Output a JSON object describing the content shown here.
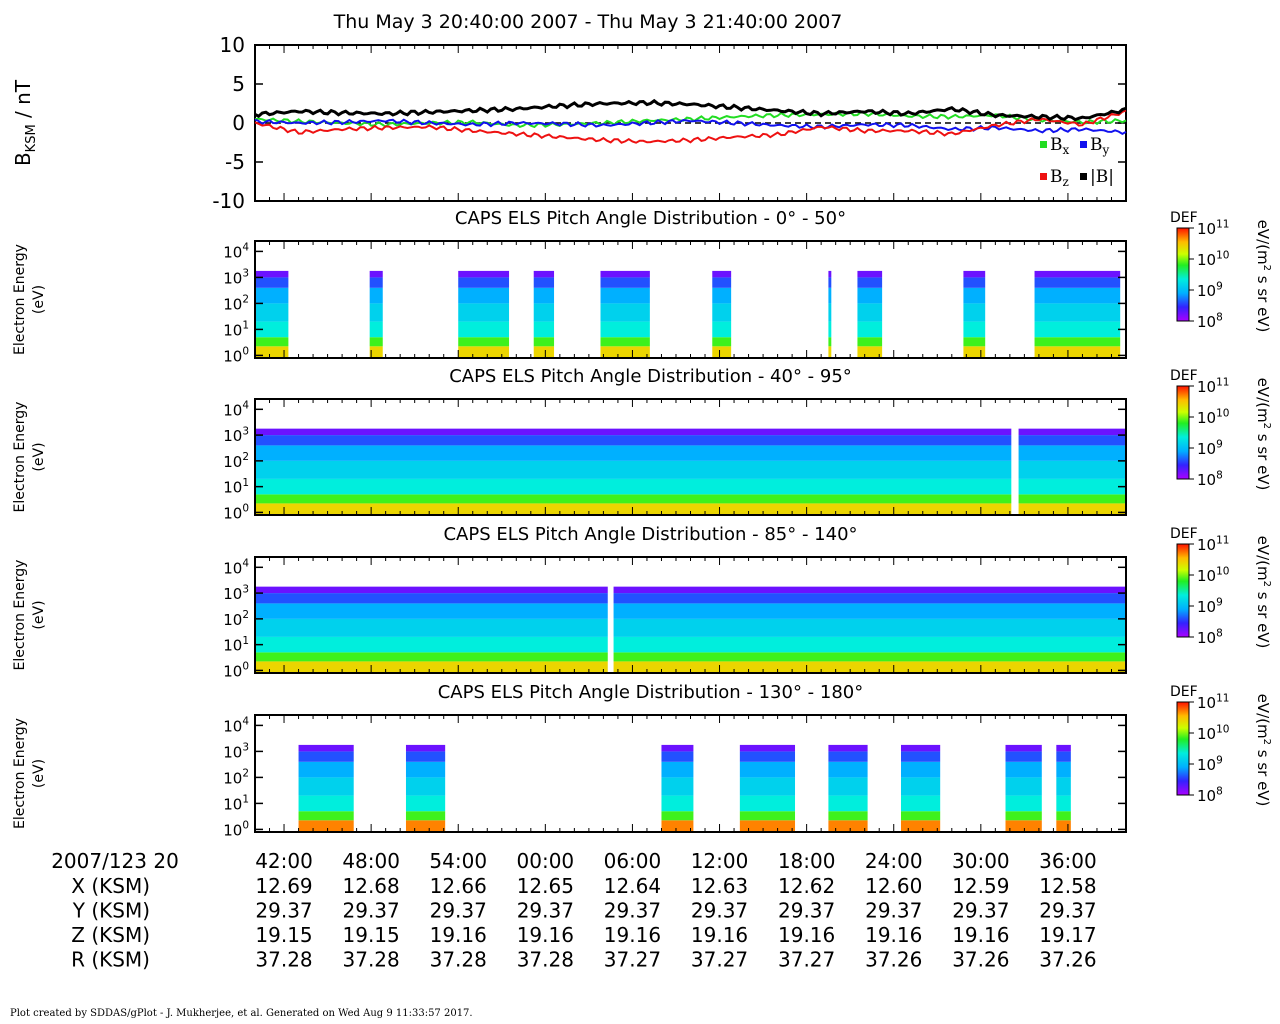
{
  "chart_data": [
    {
      "type": "line",
      "title": "Thu May 3 20:40:00 2007 - Thu May 3 21:40:00 2007",
      "ylabel": "B",
      "ylabel_sub": "KSM",
      "ylabel_unit": " / nT",
      "ylim": [
        -10,
        10
      ],
      "yticks": [
        "10",
        "5",
        "0",
        "-5",
        "-10"
      ],
      "x_minutes": [
        0,
        3,
        6,
        9,
        12,
        15,
        18,
        21,
        24,
        27,
        30,
        33,
        36,
        39,
        42,
        45,
        48,
        51,
        54,
        57,
        60
      ],
      "series": [
        {
          "name": "B",
          "sub": "x",
          "color": "#22dd22",
          "values": [
            0.5,
            0.2,
            0.0,
            -0.2,
            0.0,
            0.1,
            -0.3,
            -0.2,
            0.0,
            0.3,
            0.5,
            0.8,
            1.0,
            1.1,
            1.2,
            0.9,
            0.8,
            1.0,
            0.4,
            0.1,
            0.3
          ]
        },
        {
          "name": "B",
          "sub": "y",
          "color": "#1111ee",
          "values": [
            0.2,
            0.0,
            0.1,
            0.3,
            0.0,
            -0.2,
            0.0,
            -0.1,
            -0.3,
            0.0,
            0.3,
            0.0,
            -0.3,
            -0.5,
            -0.2,
            -0.3,
            -0.8,
            -0.6,
            -1.0,
            -0.8,
            -1.2
          ]
        },
        {
          "name": "B",
          "sub": "z",
          "color": "#ee1111",
          "values": [
            0.0,
            -1.2,
            -0.8,
            -0.6,
            -0.5,
            -1.0,
            -1.4,
            -1.8,
            -2.2,
            -2.4,
            -2.2,
            -1.8,
            -1.5,
            -0.5,
            -1.0,
            -1.0,
            -1.4,
            -0.3,
            0.5,
            -0.2,
            1.5
          ]
        },
        {
          "name": "|B|",
          "sub": "",
          "color": "#000000",
          "values": [
            1.1,
            1.5,
            1.3,
            1.2,
            1.4,
            1.6,
            1.8,
            2.2,
            2.5,
            2.6,
            2.4,
            2.0,
            1.6,
            1.2,
            1.5,
            1.2,
            1.8,
            1.0,
            0.8,
            0.6,
            1.7
          ]
        }
      ],
      "zero_line": "dashed"
    },
    {
      "type": "heatmap",
      "title": "CAPS ELS Pitch Angle Distribution - 0° - 50°",
      "ylabel": "Electron Energy",
      "yunit": "(eV)",
      "ylim_log10": [
        -0.1,
        4.4
      ],
      "coverage_minutes": [
        [
          0,
          2.3
        ],
        [
          7.9,
          8.8
        ],
        [
          14,
          17.5
        ],
        [
          19.2,
          20.6
        ],
        [
          23.8,
          27.2
        ],
        [
          31.5,
          32.8
        ],
        [
          39.5,
          39.7
        ],
        [
          41.5,
          43.2
        ],
        [
          48.8,
          50.3
        ],
        [
          53.7,
          59.6
        ]
      ],
      "cbar": {
        "label": "DEF",
        "unit_prefix": "eV/(m",
        "unit_suffix": " s sr eV)",
        "ticks": [
          "10^11",
          "10^10",
          "10^9",
          "10^8"
        ]
      }
    },
    {
      "type": "heatmap",
      "title": "CAPS ELS Pitch Angle Distribution - 40° - 95°",
      "ylabel": "Electron Energy",
      "yunit": "(eV)",
      "ylim_log10": [
        -0.1,
        4.4
      ],
      "coverage_minutes": [
        [
          0,
          52.1
        ],
        [
          52.6,
          60
        ]
      ],
      "cbar": {
        "label": "DEF",
        "unit_prefix": "eV/(m",
        "unit_suffix": " s sr eV)",
        "ticks": [
          "10^11",
          "10^10",
          "10^9",
          "10^8"
        ]
      }
    },
    {
      "type": "heatmap",
      "title": "CAPS ELS Pitch Angle Distribution - 85° - 140°",
      "ylabel": "Electron Energy",
      "yunit": "(eV)",
      "ylim_log10": [
        -0.1,
        4.4
      ],
      "coverage_minutes": [
        [
          0,
          24.3
        ],
        [
          24.7,
          60
        ]
      ],
      "cbar": {
        "label": "DEF",
        "unit_prefix": "eV/(m",
        "unit_suffix": " s sr eV)",
        "ticks": [
          "10^11",
          "10^10",
          "10^9",
          "10^8"
        ]
      }
    },
    {
      "type": "heatmap",
      "title": "CAPS ELS Pitch Angle Distribution - 130° - 180°",
      "ylabel": "Electron Energy",
      "yunit": "(eV)",
      "ylim_log10": [
        -0.1,
        4.4
      ],
      "coverage_minutes": [
        [
          3,
          6.8
        ],
        [
          10.4,
          13.1
        ],
        [
          28,
          30.2
        ],
        [
          33.4,
          37.2
        ],
        [
          39.5,
          42.2
        ],
        [
          44.5,
          47.2
        ],
        [
          51.7,
          54.2
        ],
        [
          55.2,
          56.2
        ]
      ],
      "cbar": {
        "label": "DEF",
        "unit_prefix": "eV/(m",
        "unit_suffix": " s sr eV)",
        "ticks": [
          "10^11",
          "10^10",
          "10^9",
          "10^8"
        ]
      }
    }
  ],
  "energy_ticks": [
    "10^4",
    "10^3",
    "10^2",
    "10^1",
    "10^0"
  ],
  "xaxis": {
    "label": "2007/123 20",
    "ticks": [
      "42:00",
      "48:00",
      "54:00",
      "00:00",
      "06:00",
      "12:00",
      "18:00",
      "24:00",
      "30:00",
      "36:00"
    ],
    "tick_minutes": [
      2,
      8,
      14,
      20,
      26,
      32,
      38,
      44,
      50,
      56
    ],
    "rows": [
      {
        "label": "X (KSM)",
        "values": [
          "12.69",
          "12.68",
          "12.66",
          "12.65",
          "12.64",
          "12.63",
          "12.62",
          "12.60",
          "12.59",
          "12.58"
        ]
      },
      {
        "label": "Y (KSM)",
        "values": [
          "29.37",
          "29.37",
          "29.37",
          "29.37",
          "29.37",
          "29.37",
          "29.37",
          "29.37",
          "29.37",
          "29.37"
        ]
      },
      {
        "label": "Z (KSM)",
        "values": [
          "19.15",
          "19.15",
          "19.16",
          "19.16",
          "19.16",
          "19.16",
          "19.16",
          "19.16",
          "19.16",
          "19.17"
        ]
      },
      {
        "label": "R (KSM)",
        "values": [
          "37.28",
          "37.28",
          "37.28",
          "37.28",
          "37.27",
          "37.27",
          "37.27",
          "37.26",
          "37.26",
          "37.26"
        ]
      }
    ]
  },
  "footer": "Plot created by SDDAS/gPlot - J. Mukherjee, et al.  Generated on Wed Aug 9 11:33:57 2017."
}
